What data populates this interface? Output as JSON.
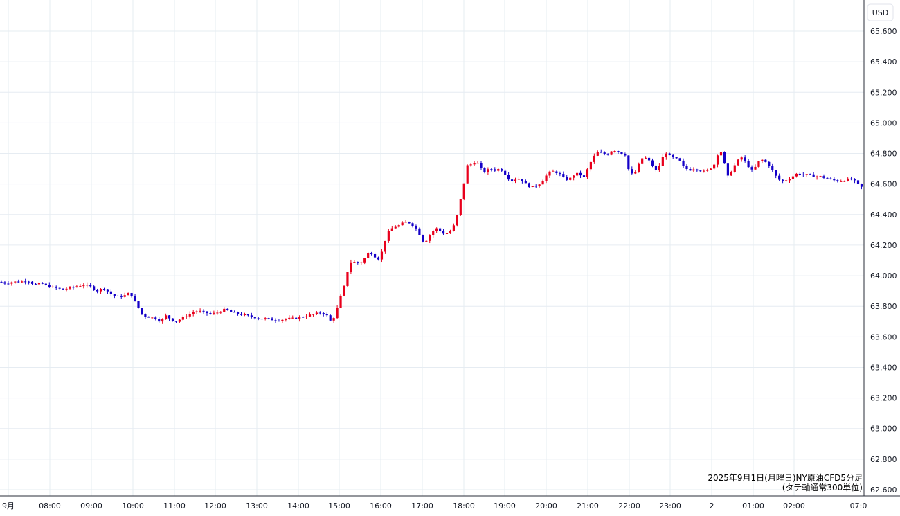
{
  "chart_data": {
    "type": "candlestick",
    "currency": "USD",
    "caption_lines": [
      "2025年9月1日(月曜日)NY原油CFD5分足",
      "(タテ軸通常300単位)"
    ],
    "y_ticks": [
      "65.600",
      "65.400",
      "65.200",
      "65.000",
      "64.800",
      "64.600",
      "64.400",
      "64.200",
      "64.000",
      "63.800",
      "63.600",
      "63.400",
      "63.200",
      "63.000",
      "62.800",
      "62.600"
    ],
    "ylim": [
      62.6,
      65.6
    ],
    "x_ticks": [
      "9月",
      "08:00",
      "09:00",
      "10:00",
      "11:00",
      "12:00",
      "13:00",
      "14:00",
      "15:00",
      "16:00",
      "17:00",
      "18:00",
      "19:00",
      "20:00",
      "21:00",
      "22:00",
      "23:00",
      "2",
      "01:00",
      "02:00",
      "07:0"
    ],
    "grid": true,
    "colors": {
      "up": "#e8001c",
      "down": "#1400c8",
      "grid": "#e6ecf2",
      "axis": "#2a2e39"
    },
    "series_points": [
      [
        0,
        63.96
      ],
      [
        8,
        63.95
      ],
      [
        20,
        63.96
      ],
      [
        30,
        63.96
      ],
      [
        40,
        63.97
      ],
      [
        50,
        63.94
      ],
      [
        60,
        63.95
      ],
      [
        70,
        63.93
      ],
      [
        80,
        63.92
      ],
      [
        90,
        63.91
      ],
      [
        100,
        63.92
      ],
      [
        110,
        63.93
      ],
      [
        120,
        63.94
      ],
      [
        130,
        63.93
      ],
      [
        140,
        63.9
      ],
      [
        150,
        63.92
      ],
      [
        160,
        63.88
      ],
      [
        170,
        63.86
      ],
      [
        180,
        63.87
      ],
      [
        188,
        63.89
      ],
      [
        195,
        63.83
      ],
      [
        200,
        63.79
      ],
      [
        206,
        63.74
      ],
      [
        215,
        63.73
      ],
      [
        225,
        63.72
      ],
      [
        232,
        63.7
      ],
      [
        240,
        63.74
      ],
      [
        248,
        63.71
      ],
      [
        255,
        63.7
      ],
      [
        262,
        63.72
      ],
      [
        270,
        63.74
      ],
      [
        278,
        63.76
      ],
      [
        286,
        63.77
      ],
      [
        295,
        63.76
      ],
      [
        305,
        63.75
      ],
      [
        315,
        63.76
      ],
      [
        325,
        63.78
      ],
      [
        335,
        63.76
      ],
      [
        345,
        63.75
      ],
      [
        355,
        63.74
      ],
      [
        365,
        63.73
      ],
      [
        375,
        63.72
      ],
      [
        385,
        63.72
      ],
      [
        395,
        63.71
      ],
      [
        405,
        63.71
      ],
      [
        415,
        63.72
      ],
      [
        425,
        63.72
      ],
      [
        435,
        63.73
      ],
      [
        445,
        63.74
      ],
      [
        455,
        63.75
      ],
      [
        465,
        63.76
      ],
      [
        472,
        63.74
      ],
      [
        478,
        63.7
      ],
      [
        484,
        63.74
      ],
      [
        488,
        63.8
      ],
      [
        493,
        63.88
      ],
      [
        498,
        63.94
      ],
      [
        503,
        64.05
      ],
      [
        508,
        64.1
      ],
      [
        515,
        64.08
      ],
      [
        522,
        64.09
      ],
      [
        528,
        64.12
      ],
      [
        534,
        64.16
      ],
      [
        540,
        64.13
      ],
      [
        547,
        64.11
      ],
      [
        553,
        64.17
      ],
      [
        558,
        64.26
      ],
      [
        563,
        64.3
      ],
      [
        570,
        64.32
      ],
      [
        577,
        64.33
      ],
      [
        584,
        64.35
      ],
      [
        590,
        64.35
      ],
      [
        596,
        64.33
      ],
      [
        603,
        64.3
      ],
      [
        608,
        64.25
      ],
      [
        613,
        64.21
      ],
      [
        618,
        64.25
      ],
      [
        623,
        64.28
      ],
      [
        630,
        64.31
      ],
      [
        637,
        64.29
      ],
      [
        643,
        64.27
      ],
      [
        650,
        64.29
      ],
      [
        656,
        64.33
      ],
      [
        660,
        64.39
      ],
      [
        663,
        64.43
      ],
      [
        667,
        64.55
      ],
      [
        671,
        64.62
      ],
      [
        675,
        64.72
      ],
      [
        681,
        64.73
      ],
      [
        688,
        64.75
      ],
      [
        695,
        64.7
      ],
      [
        700,
        64.68
      ],
      [
        708,
        64.7
      ],
      [
        715,
        64.69
      ],
      [
        722,
        64.7
      ],
      [
        728,
        64.68
      ],
      [
        733,
        64.64
      ],
      [
        740,
        64.62
      ],
      [
        748,
        64.64
      ],
      [
        755,
        64.62
      ],
      [
        762,
        64.59
      ],
      [
        768,
        64.58
      ],
      [
        775,
        64.59
      ],
      [
        782,
        64.61
      ],
      [
        788,
        64.65
      ],
      [
        795,
        64.68
      ],
      [
        802,
        64.68
      ],
      [
        810,
        64.66
      ],
      [
        816,
        64.63
      ],
      [
        822,
        64.63
      ],
      [
        829,
        64.66
      ],
      [
        836,
        64.67
      ],
      [
        843,
        64.64
      ],
      [
        848,
        64.69
      ],
      [
        853,
        64.74
      ],
      [
        858,
        64.78
      ],
      [
        864,
        64.81
      ],
      [
        870,
        64.8
      ],
      [
        877,
        64.79
      ],
      [
        884,
        64.82
      ],
      [
        890,
        64.82
      ],
      [
        897,
        64.8
      ],
      [
        904,
        64.79
      ],
      [
        909,
        64.67
      ],
      [
        916,
        64.66
      ],
      [
        922,
        64.72
      ],
      [
        929,
        64.78
      ],
      [
        936,
        64.76
      ],
      [
        943,
        64.72
      ],
      [
        949,
        64.68
      ],
      [
        955,
        64.75
      ],
      [
        961,
        64.81
      ],
      [
        968,
        64.78
      ],
      [
        975,
        64.77
      ],
      [
        982,
        64.75
      ],
      [
        988,
        64.71
      ],
      [
        995,
        64.69
      ],
      [
        1002,
        64.7
      ],
      [
        1010,
        64.69
      ],
      [
        1018,
        64.68
      ],
      [
        1025,
        64.7
      ],
      [
        1031,
        64.72
      ],
      [
        1036,
        64.79
      ],
      [
        1041,
        64.82
      ],
      [
        1047,
        64.72
      ],
      [
        1052,
        64.64
      ],
      [
        1058,
        64.7
      ],
      [
        1064,
        64.74
      ],
      [
        1070,
        64.78
      ],
      [
        1076,
        64.75
      ],
      [
        1082,
        64.71
      ],
      [
        1088,
        64.68
      ],
      [
        1094,
        64.74
      ],
      [
        1100,
        64.76
      ],
      [
        1107,
        64.74
      ],
      [
        1113,
        64.71
      ],
      [
        1118,
        64.67
      ],
      [
        1124,
        64.63
      ],
      [
        1131,
        64.62
      ],
      [
        1138,
        64.63
      ],
      [
        1145,
        64.65
      ],
      [
        1152,
        64.67
      ],
      [
        1160,
        64.66
      ],
      [
        1168,
        64.66
      ],
      [
        1176,
        64.65
      ],
      [
        1184,
        64.65
      ],
      [
        1192,
        64.64
      ],
      [
        1200,
        64.63
      ],
      [
        1208,
        64.62
      ],
      [
        1216,
        64.62
      ],
      [
        1224,
        64.63
      ],
      [
        1231,
        64.63
      ],
      [
        1237,
        64.61
      ],
      [
        1243,
        64.58
      ]
    ]
  }
}
